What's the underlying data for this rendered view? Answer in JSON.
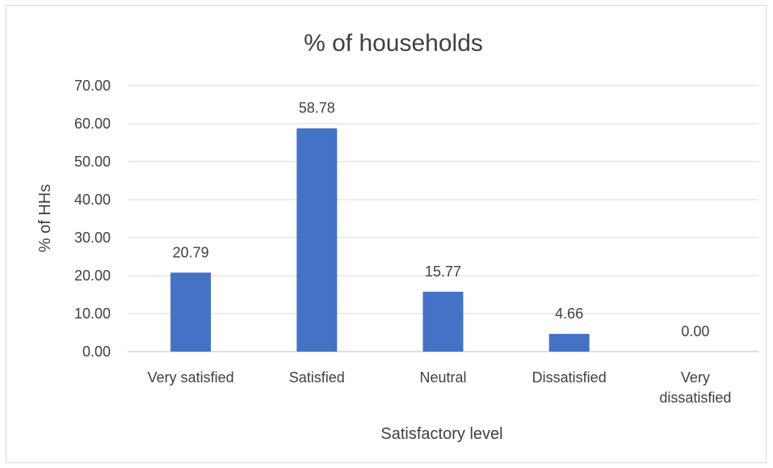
{
  "chart_data": {
    "type": "bar",
    "title": "% of households",
    "xlabel": "Satisfactory level",
    "ylabel": "% of HHs",
    "categories": [
      "Very satisfied",
      "Satisfied",
      "Neutral",
      "Dissatisfied",
      "Very dissatisfied"
    ],
    "values": [
      20.79,
      58.78,
      15.77,
      4.66,
      0.0
    ],
    "value_labels": [
      "20.79",
      "58.78",
      "15.77",
      "4.66",
      "0.00"
    ],
    "ylim": [
      0,
      70
    ],
    "yticks": [
      0,
      10,
      20,
      30,
      40,
      50,
      60,
      70
    ],
    "ytick_labels": [
      "0.00",
      "10.00",
      "20.00",
      "30.00",
      "40.00",
      "50.00",
      "60.00",
      "70.00"
    ],
    "bar_color": "#4472c4",
    "grid": true,
    "legend": "none"
  }
}
